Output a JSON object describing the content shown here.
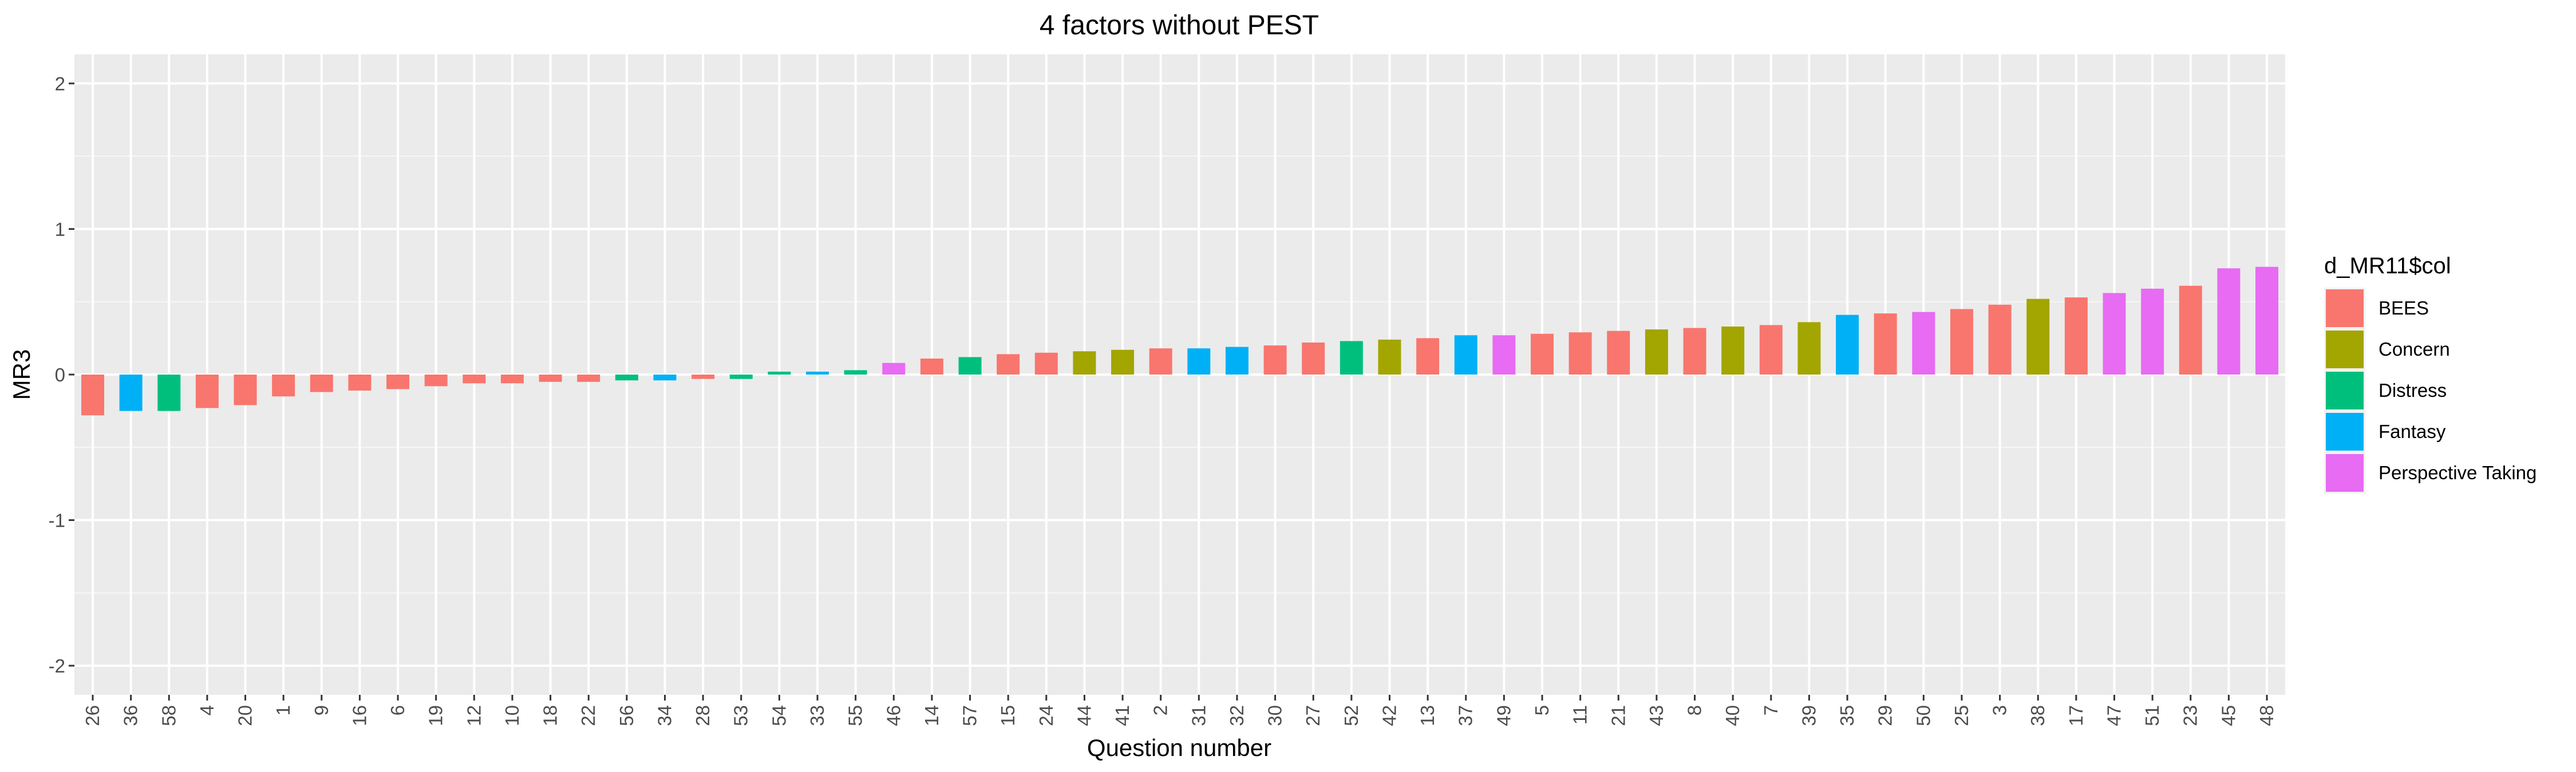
{
  "chart_data": {
    "type": "bar",
    "title": "4 factors without PEST",
    "xlabel": "Question number",
    "ylabel": "MR3",
    "ylim": [
      -2.2,
      2.2
    ],
    "yticks": [
      -2,
      -1,
      0,
      1,
      2
    ],
    "ytick_labels": [
      "-2",
      "-1",
      "0",
      "1",
      "2"
    ],
    "grid": true,
    "legend": {
      "title": "d_MR11$col",
      "position": "right",
      "entries": [
        {
          "label": "BEES",
          "color": "#F8766D"
        },
        {
          "label": "Concern",
          "color": "#A3A500"
        },
        {
          "label": "Distress",
          "color": "#00BF7D"
        },
        {
          "label": "Fantasy",
          "color": "#00B0F6"
        },
        {
          "label": "Perspective Taking",
          "color": "#E76BF3"
        }
      ]
    },
    "categories": [
      "26",
      "36",
      "58",
      "4",
      "20",
      "1",
      "9",
      "16",
      "6",
      "19",
      "12",
      "10",
      "18",
      "22",
      "56",
      "34",
      "28",
      "53",
      "54",
      "33",
      "55",
      "46",
      "14",
      "57",
      "15",
      "24",
      "44",
      "41",
      "2",
      "31",
      "32",
      "30",
      "27",
      "52",
      "42",
      "13",
      "37",
      "49",
      "5",
      "11",
      "21",
      "43",
      "8",
      "40",
      "7",
      "39",
      "35",
      "29",
      "50",
      "25",
      "3",
      "38",
      "17",
      "47",
      "51",
      "23",
      "45",
      "48"
    ],
    "values": [
      -0.28,
      -0.25,
      -0.25,
      -0.23,
      -0.21,
      -0.15,
      -0.12,
      -0.11,
      -0.1,
      -0.08,
      -0.06,
      -0.06,
      -0.05,
      -0.05,
      -0.04,
      -0.04,
      -0.03,
      -0.03,
      0.02,
      0.02,
      0.03,
      0.08,
      0.11,
      0.12,
      0.14,
      0.15,
      0.16,
      0.17,
      0.18,
      0.18,
      0.19,
      0.2,
      0.22,
      0.23,
      0.24,
      0.25,
      0.27,
      0.27,
      0.28,
      0.29,
      0.3,
      0.31,
      0.32,
      0.33,
      0.34,
      0.36,
      0.41,
      0.42,
      0.43,
      0.45,
      0.48,
      0.52,
      0.53,
      0.56,
      0.59,
      0.61,
      0.73,
      0.74
    ],
    "groups": [
      "BEES",
      "Fantasy",
      "Distress",
      "BEES",
      "BEES",
      "BEES",
      "BEES",
      "BEES",
      "BEES",
      "BEES",
      "BEES",
      "BEES",
      "BEES",
      "BEES",
      "Distress",
      "Fantasy",
      "BEES",
      "Distress",
      "Distress",
      "Fantasy",
      "Distress",
      "Perspective Taking",
      "BEES",
      "Distress",
      "BEES",
      "BEES",
      "Concern",
      "Concern",
      "BEES",
      "Fantasy",
      "Fantasy",
      "BEES",
      "BEES",
      "Distress",
      "Concern",
      "BEES",
      "Fantasy",
      "Perspective Taking",
      "BEES",
      "BEES",
      "BEES",
      "Concern",
      "BEES",
      "Concern",
      "BEES",
      "Concern",
      "Fantasy",
      "BEES",
      "Perspective Taking",
      "BEES",
      "BEES",
      "Concern",
      "BEES",
      "Perspective Taking",
      "Perspective Taking",
      "BEES",
      "Perspective Taking",
      "Perspective Taking"
    ]
  }
}
